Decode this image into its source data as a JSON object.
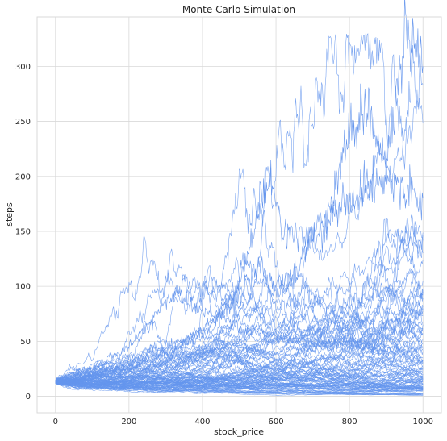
{
  "chart_data": {
    "type": "line",
    "title": "Monte Carlo Simulation",
    "xlabel": "stock_price",
    "ylabel": "steps",
    "xlim": [
      -50,
      1050
    ],
    "ylim": [
      -15,
      345
    ],
    "x_ticks": [
      0,
      200,
      400,
      600,
      800,
      1000
    ],
    "y_ticks": [
      0,
      50,
      100,
      150,
      200,
      250,
      300
    ],
    "grid": true,
    "line_color": "#6495ED",
    "simulation": {
      "num_paths": 100,
      "num_steps": 1000,
      "start_value": 13
    },
    "notable_paths": [
      {
        "x": [
          0,
          100,
          200,
          300,
          400,
          500,
          560,
          600,
          650,
          700,
          750,
          800,
          850,
          900,
          950,
          1000
        ],
        "y": [
          13,
          20,
          30,
          45,
          60,
          90,
          120,
          95,
          110,
          150,
          175,
          240,
          265,
          210,
          325,
          300
        ]
      },
      {
        "x": [
          0,
          100,
          200,
          300,
          400,
          500,
          580,
          620,
          700,
          800,
          900,
          1000
        ],
        "y": [
          13,
          18,
          25,
          40,
          55,
          100,
          205,
          150,
          140,
          180,
          200,
          180
        ]
      },
      {
        "x": [
          0,
          100,
          200,
          300,
          330,
          380,
          450,
          500,
          600,
          700,
          800,
          900,
          1000
        ],
        "y": [
          13,
          25,
          45,
          85,
          97,
          80,
          75,
          60,
          55,
          45,
          50,
          40,
          35
        ]
      }
    ]
  }
}
